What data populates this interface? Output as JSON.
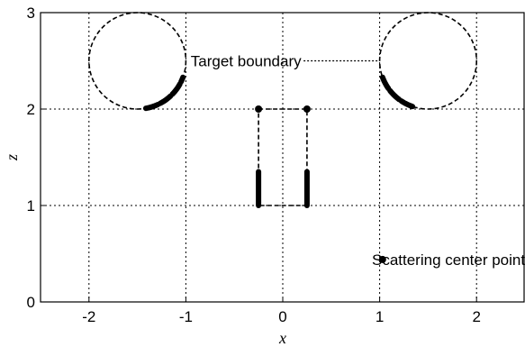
{
  "chart_data": {
    "type": "scatter",
    "title": "",
    "xlabel": "x",
    "ylabel": "z",
    "xlim": [
      -2.5,
      2.5
    ],
    "ylim": [
      0,
      3
    ],
    "xticks": [
      -2,
      -1,
      0,
      1,
      2
    ],
    "yticks": [
      0,
      1,
      2,
      3
    ],
    "xtick_labels": [
      "-2",
      "-1",
      "0",
      "1",
      "2"
    ],
    "ytick_labels": [
      "0",
      "1",
      "2",
      "3"
    ],
    "grid": true,
    "grid_style": "dotted",
    "target_boundary": {
      "circles": [
        {
          "cx": -1.5,
          "cz": 2.5,
          "r": 0.5
        },
        {
          "cx": 1.5,
          "cz": 2.5,
          "r": 0.5
        }
      ],
      "rectangle": {
        "x0": -0.25,
        "x1": 0.25,
        "z0": 1.0,
        "z1": 2.0
      }
    },
    "scattering_center_groups": [
      {
        "type": "arc",
        "cx": -1.5,
        "cz": 2.5,
        "r": 0.5,
        "deg_from": -80,
        "deg_to": -20
      },
      {
        "type": "arc",
        "cx": 1.5,
        "cz": 2.5,
        "r": 0.5,
        "deg_from": 200,
        "deg_to": 255
      },
      {
        "type": "segment",
        "x": -0.25,
        "z_from": 1.0,
        "z_to": 1.35
      },
      {
        "type": "segment",
        "x": 0.25,
        "z_from": 1.0,
        "z_to": 1.35
      }
    ],
    "points": [
      {
        "x": -0.25,
        "z": 2.0
      },
      {
        "x": 0.25,
        "z": 2.0
      },
      {
        "x": 1.03,
        "z": 0.44
      }
    ],
    "annotations": [
      {
        "text": "Target boundary",
        "x": -0.95,
        "z": 2.5,
        "line_to_x": 0.98,
        "line_to_z": 2.5
      },
      {
        "text": "Scattering center point",
        "x": 0.92,
        "z": 0.44
      }
    ]
  }
}
